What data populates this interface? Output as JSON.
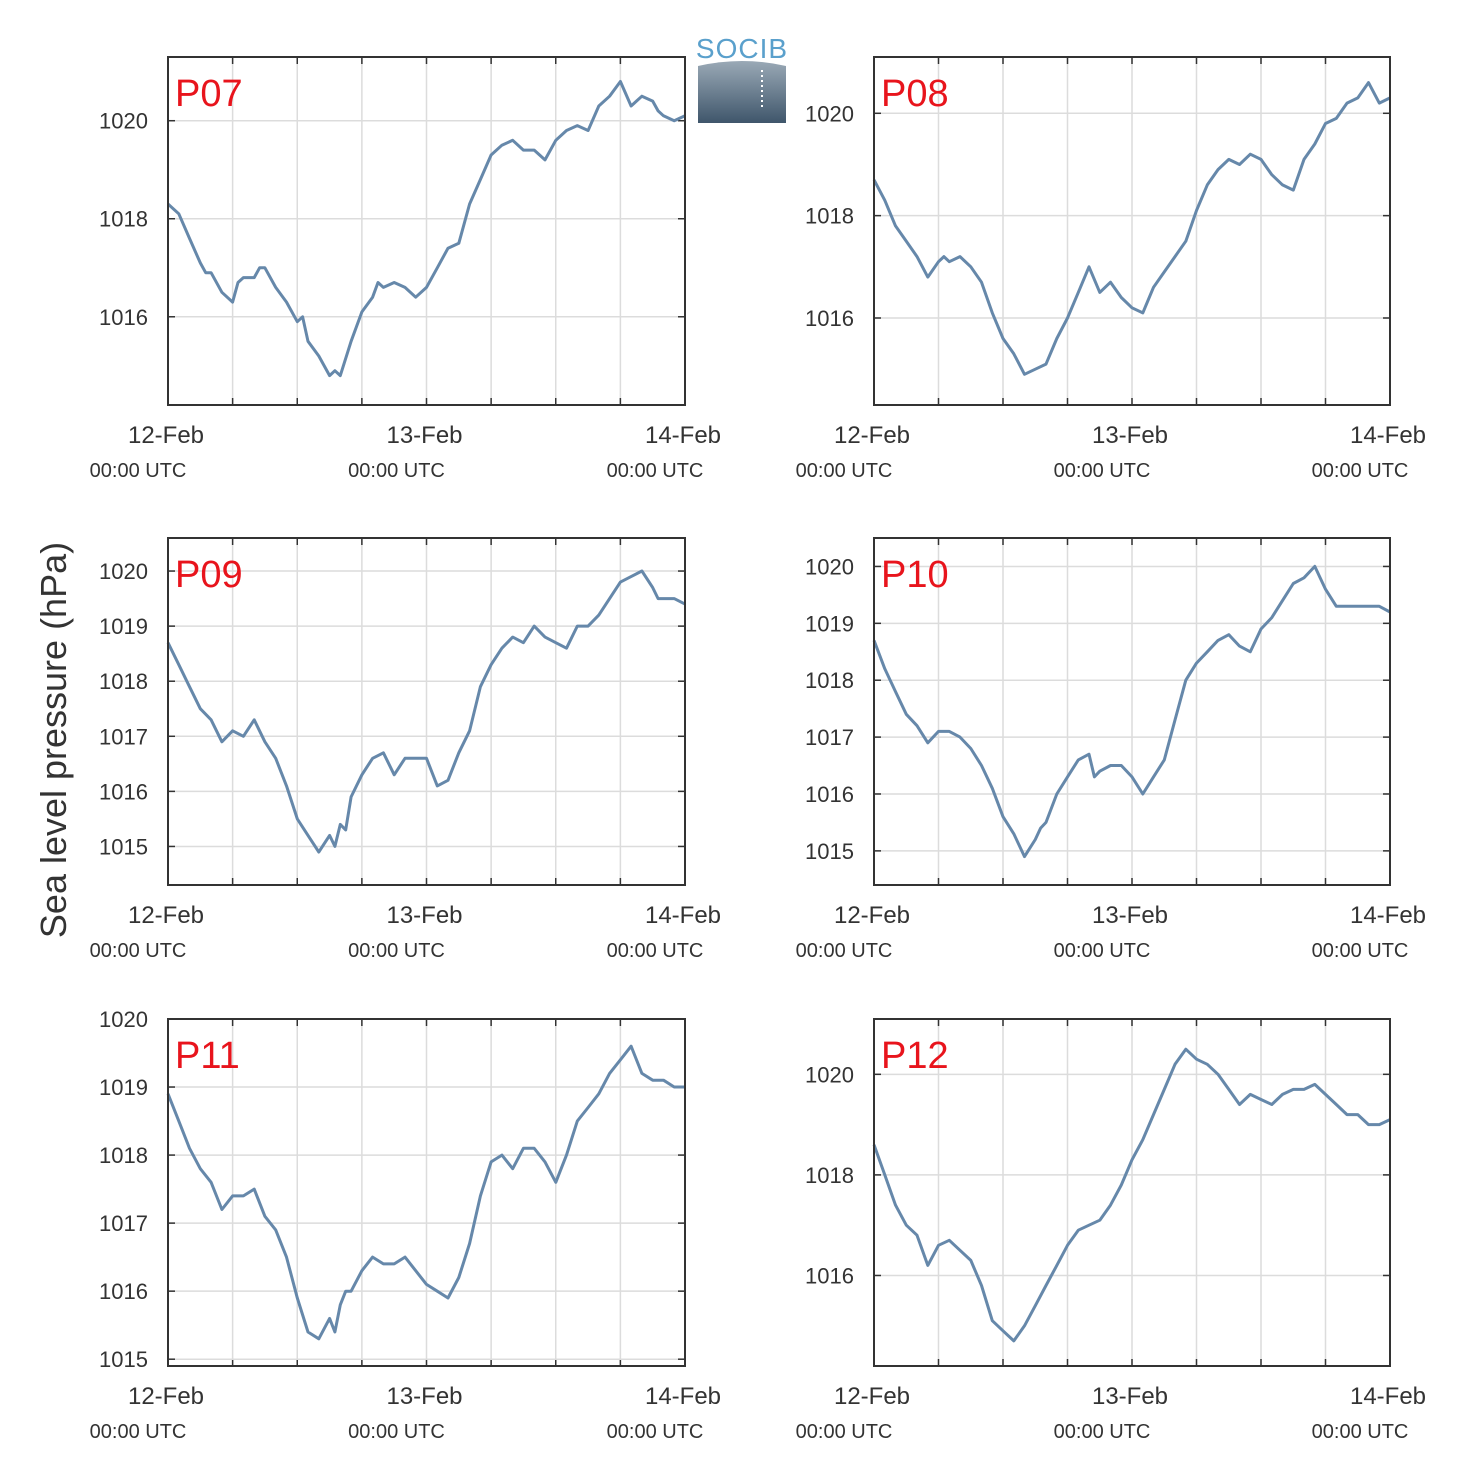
{
  "logo": {
    "text": "SOCIB"
  },
  "chart_data": {
    "type": "line",
    "ylabel": "Sea level pressure (hPa)",
    "line_color": "#6688aa",
    "grid": true,
    "x_ticks": [
      {
        "date": "12-Feb",
        "time": "00:00 UTC"
      },
      {
        "date": "13-Feb",
        "time": "00:00 UTC"
      },
      {
        "date": "14-Feb",
        "time": "00:00 UTC"
      }
    ],
    "x_unit": "hours since 12-Feb 00:00 UTC",
    "xlim": [
      0,
      48
    ],
    "panels": [
      {
        "label": "P07",
        "ylim": [
          1014.2,
          1021.3
        ],
        "yticks": [
          "1016",
          "1018",
          "1020"
        ],
        "x": [
          0,
          1,
          2,
          3,
          3.5,
          4,
          5,
          6,
          6.5,
          7,
          8,
          8.5,
          9,
          10,
          11,
          12,
          12.5,
          13,
          14,
          15,
          15.5,
          16,
          17,
          18,
          19,
          19.5,
          20,
          21,
          22,
          23,
          24,
          25,
          26,
          27,
          28,
          29,
          30,
          31,
          32,
          33,
          34,
          35,
          36,
          37,
          38,
          39,
          40,
          41,
          42,
          43,
          44,
          45,
          45.5,
          46,
          47,
          48
        ],
        "y": [
          1018.3,
          1018.1,
          1017.6,
          1017.1,
          1016.9,
          1016.9,
          1016.5,
          1016.3,
          1016.7,
          1016.8,
          1016.8,
          1017.0,
          1017.0,
          1016.6,
          1016.3,
          1015.9,
          1016.0,
          1015.5,
          1015.2,
          1014.8,
          1014.9,
          1014.8,
          1015.5,
          1016.1,
          1016.4,
          1016.7,
          1016.6,
          1016.7,
          1016.6,
          1016.4,
          1016.6,
          1017.0,
          1017.4,
          1017.5,
          1018.3,
          1018.8,
          1019.3,
          1019.5,
          1019.6,
          1019.4,
          1019.4,
          1019.2,
          1019.6,
          1019.8,
          1019.9,
          1019.8,
          1020.3,
          1020.5,
          1020.8,
          1020.3,
          1020.5,
          1020.4,
          1020.2,
          1020.1,
          1020.0,
          1020.1
        ]
      },
      {
        "label": "P08",
        "ylim": [
          1014.3,
          1021.1
        ],
        "yticks": [
          "1016",
          "1018",
          "1020"
        ],
        "x": [
          0,
          1,
          2,
          3,
          4,
          5,
          6,
          6.5,
          7,
          8,
          9,
          10,
          11,
          12,
          13,
          14,
          15,
          16,
          17,
          18,
          19,
          20,
          21,
          22,
          23,
          24,
          25,
          26,
          27,
          28,
          29,
          30,
          31,
          32,
          33,
          34,
          35,
          36,
          37,
          38,
          39,
          40,
          41,
          42,
          43,
          44,
          45,
          46,
          47,
          48
        ],
        "y": [
          1018.7,
          1018.3,
          1017.8,
          1017.5,
          1017.2,
          1016.8,
          1017.1,
          1017.2,
          1017.1,
          1017.2,
          1017.0,
          1016.7,
          1016.1,
          1015.6,
          1015.3,
          1014.9,
          1015.0,
          1015.1,
          1015.6,
          1016.0,
          1016.5,
          1017.0,
          1016.5,
          1016.7,
          1016.4,
          1016.2,
          1016.1,
          1016.6,
          1016.9,
          1017.2,
          1017.5,
          1018.1,
          1018.6,
          1018.9,
          1019.1,
          1019.0,
          1019.2,
          1019.1,
          1018.8,
          1018.6,
          1018.5,
          1019.1,
          1019.4,
          1019.8,
          1019.9,
          1020.2,
          1020.3,
          1020.6,
          1020.2,
          1020.3
        ]
      },
      {
        "label": "P09",
        "ylim": [
          1014.3,
          1020.6
        ],
        "yticks": [
          "1015",
          "1016",
          "1017",
          "1018",
          "1019",
          "1020"
        ],
        "x": [
          0,
          1,
          2,
          3,
          4,
          5,
          6,
          7,
          8,
          9,
          10,
          11,
          12,
          13,
          14,
          15,
          15.5,
          16,
          16.5,
          17,
          18,
          19,
          20,
          21,
          22,
          23,
          24,
          25,
          26,
          27,
          28,
          29,
          30,
          31,
          32,
          33,
          34,
          35,
          36,
          37,
          38,
          39,
          40,
          41,
          42,
          43,
          44,
          45,
          45.5,
          46,
          47,
          48
        ],
        "y": [
          1018.7,
          1018.3,
          1017.9,
          1017.5,
          1017.3,
          1016.9,
          1017.1,
          1017.0,
          1017.3,
          1016.9,
          1016.6,
          1016.1,
          1015.5,
          1015.2,
          1014.9,
          1015.2,
          1015.0,
          1015.4,
          1015.3,
          1015.9,
          1016.3,
          1016.6,
          1016.7,
          1016.3,
          1016.6,
          1016.6,
          1016.6,
          1016.1,
          1016.2,
          1016.7,
          1017.1,
          1017.9,
          1018.3,
          1018.6,
          1018.8,
          1018.7,
          1019.0,
          1018.8,
          1018.7,
          1018.6,
          1019.0,
          1019.0,
          1019.2,
          1019.5,
          1019.8,
          1019.9,
          1020.0,
          1019.7,
          1019.5,
          1019.5,
          1019.5,
          1019.4
        ]
      },
      {
        "label": "P10",
        "ylim": [
          1014.4,
          1020.5
        ],
        "yticks": [
          "1015",
          "1016",
          "1017",
          "1018",
          "1019",
          "1020"
        ],
        "x": [
          0,
          1,
          2,
          3,
          4,
          5,
          6,
          7,
          8,
          9,
          10,
          11,
          12,
          13,
          14,
          15,
          15.5,
          16,
          17,
          18,
          19,
          20,
          20.5,
          21,
          22,
          23,
          24,
          25,
          26,
          27,
          28,
          29,
          30,
          31,
          32,
          33,
          34,
          35,
          36,
          37,
          38,
          39,
          40,
          41,
          42,
          43,
          44,
          45,
          45.5,
          46,
          47,
          48
        ],
        "y": [
          1018.7,
          1018.2,
          1017.8,
          1017.4,
          1017.2,
          1016.9,
          1017.1,
          1017.1,
          1017.0,
          1016.8,
          1016.5,
          1016.1,
          1015.6,
          1015.3,
          1014.9,
          1015.2,
          1015.4,
          1015.5,
          1016.0,
          1016.3,
          1016.6,
          1016.7,
          1016.3,
          1016.4,
          1016.5,
          1016.5,
          1016.3,
          1016.0,
          1016.3,
          1016.6,
          1017.3,
          1018.0,
          1018.3,
          1018.5,
          1018.7,
          1018.8,
          1018.6,
          1018.5,
          1018.9,
          1019.1,
          1019.4,
          1019.7,
          1019.8,
          1020.0,
          1019.6,
          1019.3,
          1019.3,
          1019.3,
          1019.3,
          1019.3,
          1019.3,
          1019.2
        ]
      },
      {
        "label": "P11",
        "ylim": [
          1014.9,
          1020.0
        ],
        "yticks": [
          "1015",
          "1016",
          "1017",
          "1018",
          "1019",
          "1020"
        ],
        "x": [
          0,
          1,
          2,
          3,
          4,
          5,
          6,
          7,
          8,
          9,
          10,
          11,
          12,
          13,
          14,
          15,
          15.5,
          16,
          16.5,
          17,
          18,
          19,
          20,
          21,
          22,
          23,
          24,
          25,
          26,
          27,
          28,
          29,
          30,
          31,
          32,
          33,
          34,
          35,
          36,
          37,
          38,
          39,
          40,
          41,
          42,
          43,
          44,
          45,
          45.5,
          46,
          47,
          48
        ],
        "y": [
          1018.9,
          1018.5,
          1018.1,
          1017.8,
          1017.6,
          1017.2,
          1017.4,
          1017.4,
          1017.5,
          1017.1,
          1016.9,
          1016.5,
          1015.9,
          1015.4,
          1015.3,
          1015.6,
          1015.4,
          1015.8,
          1016.0,
          1016.0,
          1016.3,
          1016.5,
          1016.4,
          1016.4,
          1016.5,
          1016.3,
          1016.1,
          1016.0,
          1015.9,
          1016.2,
          1016.7,
          1017.4,
          1017.9,
          1018.0,
          1017.8,
          1018.1,
          1018.1,
          1017.9,
          1017.6,
          1018.0,
          1018.5,
          1018.7,
          1018.9,
          1019.2,
          1019.4,
          1019.6,
          1019.2,
          1019.1,
          1019.1,
          1019.1,
          1019.0,
          1019.0
        ]
      },
      {
        "label": "P12",
        "ylim": [
          1014.2,
          1021.1
        ],
        "yticks": [
          "1016",
          "1018",
          "1020"
        ],
        "x": [
          0,
          1,
          2,
          3,
          4,
          5,
          6,
          7,
          8,
          9,
          10,
          11,
          12,
          13,
          14,
          15,
          16,
          17,
          18,
          19,
          20,
          21,
          22,
          23,
          24,
          25,
          26,
          27,
          28,
          29,
          30,
          31,
          32,
          33,
          34,
          35,
          36,
          37,
          38,
          39,
          40,
          41,
          42,
          43,
          44,
          45,
          46,
          47,
          48
        ],
        "y": [
          1018.6,
          1018.0,
          1017.4,
          1017.0,
          1016.8,
          1016.2,
          1016.6,
          1016.7,
          1016.5,
          1016.3,
          1015.8,
          1015.1,
          1014.9,
          1014.7,
          1015.0,
          1015.4,
          1015.8,
          1016.2,
          1016.6,
          1016.9,
          1017.0,
          1017.1,
          1017.4,
          1017.8,
          1018.3,
          1018.7,
          1019.2,
          1019.7,
          1020.2,
          1020.5,
          1020.3,
          1020.2,
          1020.0,
          1019.7,
          1019.4,
          1019.6,
          1019.5,
          1019.4,
          1019.6,
          1019.7,
          1019.7,
          1019.8,
          1019.6,
          1019.4,
          1019.2,
          1019.2,
          1019.0,
          1019.0,
          1019.1
        ]
      }
    ]
  }
}
